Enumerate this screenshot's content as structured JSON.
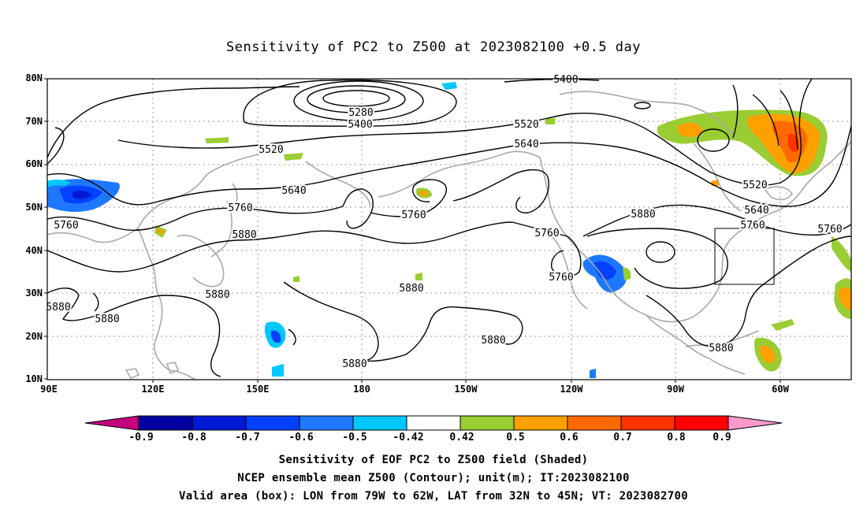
{
  "title": "Sensitivity of PC2 to Z500 at 2023082100 +0.5 day",
  "map": {
    "lat_labels": [
      "80N",
      "70N",
      "60N",
      "50N",
      "40N",
      "30N",
      "20N",
      "10N"
    ],
    "lon_labels": [
      "90E",
      "120E",
      "150E",
      "180",
      "150W",
      "120W",
      "90W",
      "60W"
    ],
    "contour_labels": [
      "5400",
      "5280",
      "5400",
      "5520",
      "5520",
      "5640",
      "5640",
      "5760",
      "5760",
      "5760",
      "5880",
      "5880",
      "5880",
      "5880",
      "5880",
      "5880",
      "5880",
      "5760",
      "5760",
      "5640",
      "5520",
      "5760",
      "5880",
      "5760"
    ],
    "valid_box": {
      "lon_from": "79W",
      "lon_to": "62W",
      "lat_from": "32N",
      "lat_to": "45N"
    }
  },
  "colorbar": {
    "tick_labels": [
      "-0.9",
      "-0.8",
      "-0.7",
      "-0.6",
      "-0.5",
      "-0.42",
      "0.42",
      "0.5",
      "0.6",
      "0.7",
      "0.8",
      "0.9"
    ],
    "colors": [
      "#c6007f",
      "#0000a0",
      "#0019d5",
      "#0040ff",
      "#1e78ff",
      "#00c8ff",
      "#ffffff",
      "#9acd32",
      "#ff9f00",
      "#ff6a00",
      "#ff3300",
      "#ff0000",
      "#ff99cc"
    ]
  },
  "captions": [
    "Sensitivity of EOF PC2 to Z500 field (Shaded)",
    "NCEP ensemble mean Z500 (Contour); unit(m); IT:2023082100",
    "Valid area (box): LON from 79W to 62W, LAT from 32N to 45N; VT: 2023082700"
  ]
}
